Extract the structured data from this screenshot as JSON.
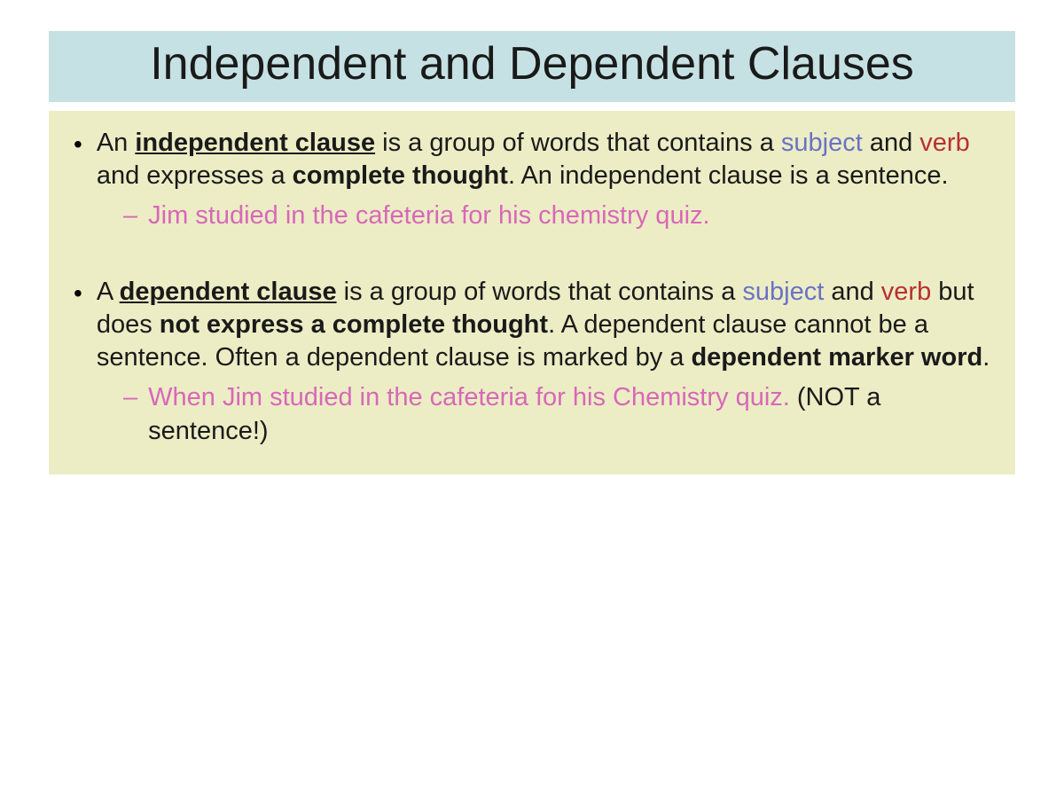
{
  "slide": {
    "title": "Independent and Dependent Clauses",
    "title_bg_color": "#c6e1e3",
    "content_bg_color": "#ecedc5",
    "subject_color": "#6a72c4",
    "verb_color": "#b83030",
    "example_color": "#d868b8",
    "title_fontsize": 52,
    "body_fontsize": 29,
    "items": [
      {
        "term": "independent clause",
        "pre": "An ",
        "mid1": " is a group of words that contains a ",
        "subject": "subject",
        "and": " and ",
        "verb": "verb",
        "mid2": " and expresses a ",
        "bold1": "complete thought",
        "mid3": ". An independent clause is a sentence.",
        "example": "Jim studied in the cafeteria for his chemistry quiz.",
        "example_note": ""
      },
      {
        "term": "dependent clause",
        "pre": "A ",
        "mid1": " is a group of words that contains a ",
        "subject": "subject",
        "and": " and ",
        "verb": "verb",
        "mid2": " but does ",
        "bold1": "not express a complete thought",
        "mid3": ". A dependent clause cannot be a sentence. Often a dependent clause is marked by a ",
        "bold2": "dependent marker word",
        "mid4": ".",
        "example": "When Jim studied in the cafeteria for his Chemistry quiz. ",
        "example_note": "(NOT a sentence!)"
      }
    ]
  }
}
